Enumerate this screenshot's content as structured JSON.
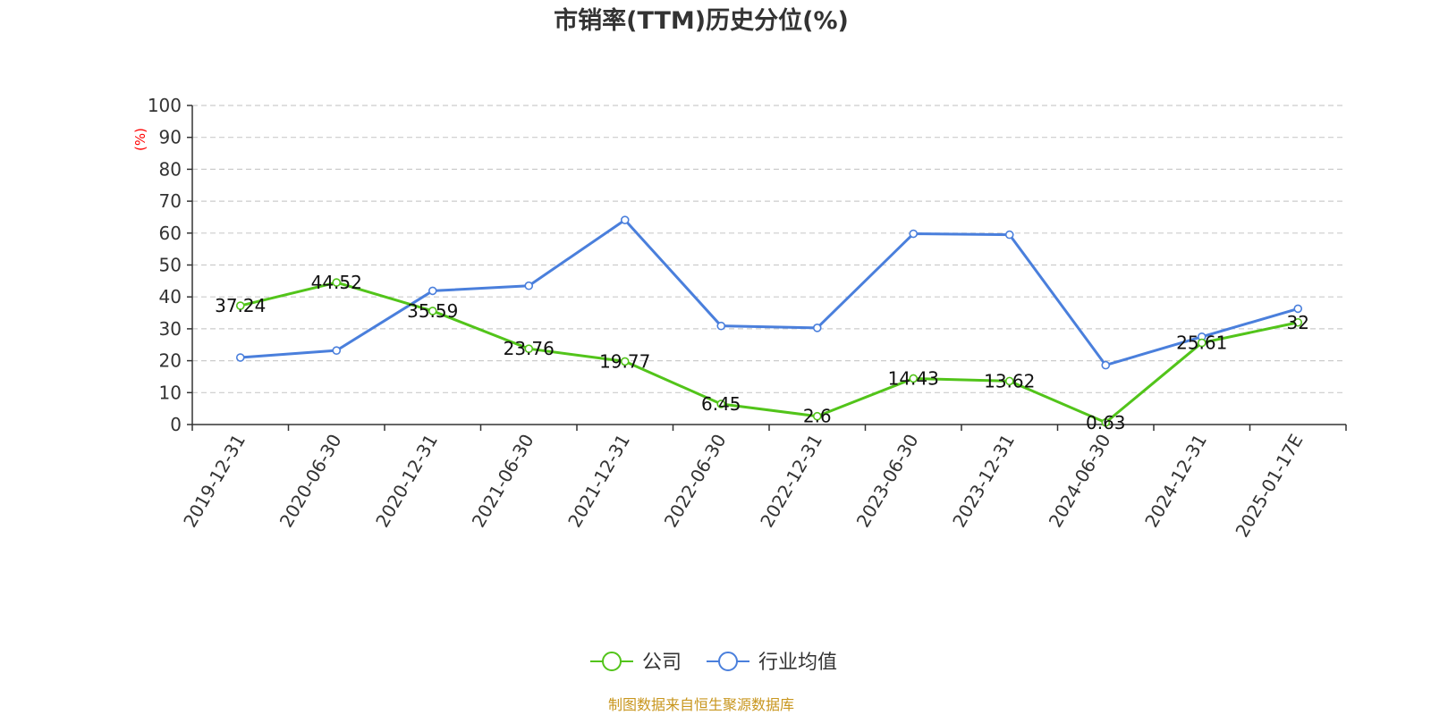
{
  "chart_data": {
    "type": "line",
    "title": "市销率(TTM)历史分位(%)",
    "ylabel": "(%)",
    "ylim": [
      0,
      100
    ],
    "yticks": [
      0,
      10,
      20,
      30,
      40,
      50,
      60,
      70,
      80,
      90,
      100
    ],
    "grid": true,
    "legend_position": "bottom-center",
    "categories": [
      "2019-12-31",
      "2020-06-30",
      "2020-12-31",
      "2021-06-30",
      "2021-12-31",
      "2022-06-30",
      "2022-12-31",
      "2023-06-30",
      "2023-12-31",
      "2024-06-30",
      "2024-12-31",
      "2025-01-17E"
    ],
    "series": [
      {
        "name": "公司",
        "color": "#52c41a",
        "show_labels": true,
        "values": [
          37.24,
          44.52,
          35.59,
          23.76,
          19.77,
          6.45,
          2.6,
          14.43,
          13.62,
          0.63,
          25.61,
          32
        ],
        "labels": [
          "37.24",
          "44.52",
          "35.59",
          "23.76",
          "19.77",
          "6.45",
          "2.6",
          "14.43",
          "13.62",
          "0.63",
          "25.61",
          "32"
        ]
      },
      {
        "name": "行业均值",
        "color": "#4a7fdc",
        "show_labels": false,
        "values": [
          21.0,
          23.2,
          41.9,
          43.5,
          64.1,
          30.9,
          30.3,
          59.8,
          59.5,
          18.6,
          27.5,
          36.3
        ]
      }
    ],
    "source": "制图数据来自恒生聚源数据库",
    "source_color": "#c8961e",
    "unit_color": "#ff0000"
  }
}
